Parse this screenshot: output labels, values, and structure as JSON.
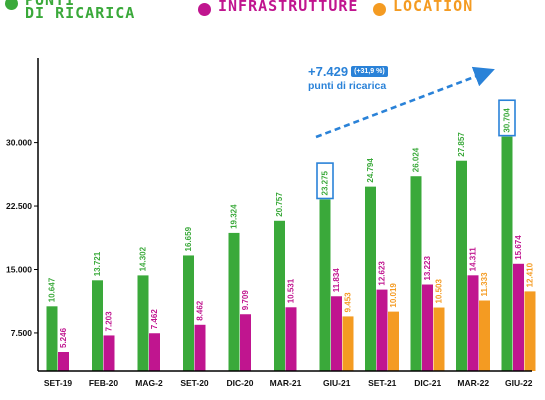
{
  "legend": [
    {
      "lines": [
        "PUNTI",
        "DI RICARICA"
      ],
      "color": "#3aa93a"
    },
    {
      "lines": [
        "INFRASTRUTTURE"
      ],
      "color": "#c0158f"
    },
    {
      "lines": [
        "LOCATION"
      ],
      "color": "#f49b22"
    }
  ],
  "annotation": {
    "increase": "+7.429",
    "percent": "(+31,9 %)",
    "subtitle": "punti di ricarica",
    "color": "#2a82d8"
  },
  "chart_data": {
    "type": "bar",
    "categories": [
      "SET-19",
      "FEB-20",
      "MAG-2",
      "SET-20",
      "DIC-20",
      "MAR-21",
      "GIU-21",
      "SET-21",
      "DIC-21",
      "MAR-22",
      "GIU-22"
    ],
    "series": [
      {
        "name": "PUNTI DI RICARICA",
        "color": "#3aa93a",
        "values": [
          10647,
          13721,
          14302,
          16659,
          19324,
          20757,
          23275,
          24794,
          26024,
          27857,
          30704
        ],
        "labels": [
          "10.647",
          "13.721",
          "14.302",
          "16.659",
          "19.324",
          "20.757",
          "23.275",
          "24.794",
          "26.024",
          "27.857",
          "30.704"
        ]
      },
      {
        "name": "INFRASTRUTTURE",
        "color": "#c0158f",
        "values": [
          5246,
          7203,
          7462,
          8462,
          9709,
          10531,
          11834,
          12623,
          13223,
          14311,
          15674
        ],
        "labels": [
          "5.246",
          "7.203",
          "7.462",
          "8.462",
          "9.709",
          "10.531",
          "11.834",
          "12.623",
          "13.223",
          "14.311",
          "15.674"
        ]
      },
      {
        "name": "LOCATION",
        "color": "#f49b22",
        "values": [
          null,
          null,
          null,
          null,
          null,
          null,
          9453,
          10019,
          10503,
          11333,
          12410
        ],
        "labels": [
          null,
          null,
          null,
          null,
          null,
          null,
          "9.453",
          "10.019",
          "10.503",
          "11.333",
          "12.410"
        ]
      }
    ],
    "yticks": [
      7500,
      15000,
      22500,
      30000
    ],
    "ytick_labels": [
      "7.500",
      "15.000",
      "22.500",
      "30.000"
    ],
    "ylim": [
      3000,
      40000
    ],
    "highlighted_labels": [
      "23.275",
      "30.704"
    ],
    "grid": false
  }
}
